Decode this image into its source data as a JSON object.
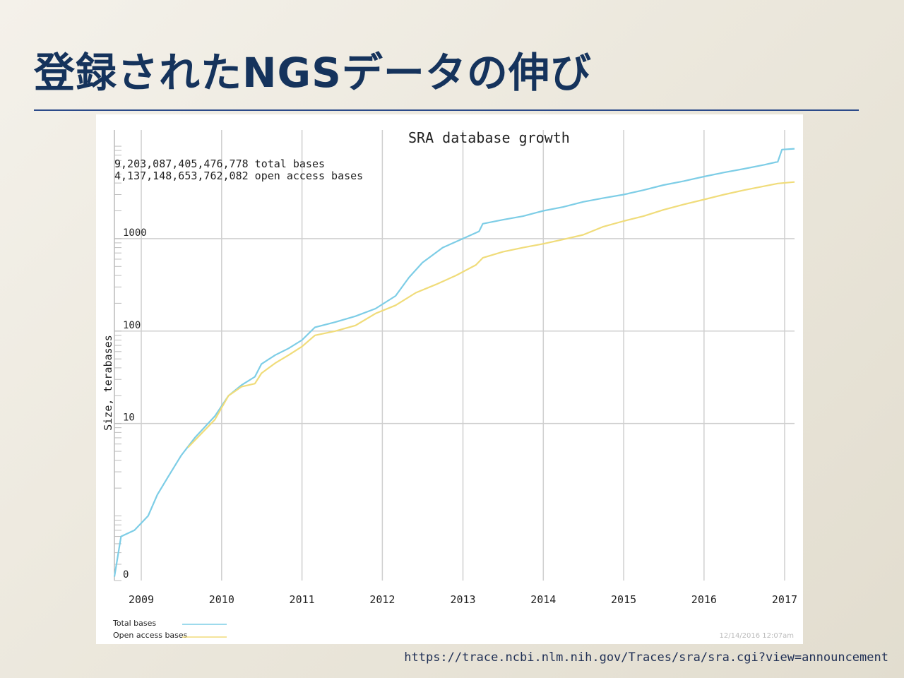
{
  "slide": {
    "title": "登録されたNGSデータの伸び",
    "source_url": "https://trace.ncbi.nlm.nih.gov/Traces/sra/sra.cgi?view=announcement"
  },
  "chart_data": {
    "type": "line",
    "title": "SRA database growth",
    "ylabel": "Size, terabases",
    "xlabel": "",
    "y_scale": "log",
    "ylim": [
      0.2,
      15000
    ],
    "xlim": [
      "2008-09-01",
      "2017-02-15"
    ],
    "x_ticks": [
      "2009",
      "2010",
      "2011",
      "2012",
      "2013",
      "2014",
      "2015",
      "2016",
      "2017"
    ],
    "y_ticks": [
      {
        "label": "0",
        "value": 0.2
      },
      {
        "label": "10",
        "value": 10
      },
      {
        "label": "100",
        "value": 100
      },
      {
        "label": "1000",
        "value": 1000
      }
    ],
    "grid": true,
    "legend_position": "bottom-left",
    "stats": [
      "9,203,087,405,476,778 total bases",
      "4,137,148,653,762,082 open access bases"
    ],
    "timestamp": "12/14/2016 12:07am",
    "series": [
      {
        "name": "Total bases",
        "color": "#7dcde6",
        "points": [
          [
            "2008-09-01",
            0.22
          ],
          [
            "2008-10-01",
            0.6
          ],
          [
            "2008-12-01",
            0.7
          ],
          [
            "2009-02-01",
            1.0
          ],
          [
            "2009-03-15",
            1.7
          ],
          [
            "2009-05-01",
            2.6
          ],
          [
            "2009-07-01",
            4.5
          ],
          [
            "2009-09-01",
            7.0
          ],
          [
            "2009-12-01",
            12
          ],
          [
            "2010-02-01",
            20
          ],
          [
            "2010-04-01",
            26
          ],
          [
            "2010-06-01",
            32
          ],
          [
            "2010-07-01",
            44
          ],
          [
            "2010-09-01",
            55
          ],
          [
            "2010-11-01",
            65
          ],
          [
            "2011-01-01",
            80
          ],
          [
            "2011-03-01",
            110
          ],
          [
            "2011-06-01",
            125
          ],
          [
            "2011-09-01",
            145
          ],
          [
            "2011-12-01",
            175
          ],
          [
            "2012-03-01",
            240
          ],
          [
            "2012-05-01",
            380
          ],
          [
            "2012-07-01",
            550
          ],
          [
            "2012-10-01",
            800
          ],
          [
            "2013-01-01",
            1000
          ],
          [
            "2013-03-15",
            1200
          ],
          [
            "2013-04-01",
            1450
          ],
          [
            "2013-07-01",
            1600
          ],
          [
            "2013-10-01",
            1750
          ],
          [
            "2014-01-01",
            2000
          ],
          [
            "2014-04-01",
            2200
          ],
          [
            "2014-07-01",
            2500
          ],
          [
            "2014-10-01",
            2750
          ],
          [
            "2015-01-01",
            3000
          ],
          [
            "2015-04-01",
            3350
          ],
          [
            "2015-07-01",
            3800
          ],
          [
            "2015-10-01",
            4200
          ],
          [
            "2016-01-01",
            4700
          ],
          [
            "2016-04-01",
            5200
          ],
          [
            "2016-07-01",
            5700
          ],
          [
            "2016-10-01",
            6300
          ],
          [
            "2016-12-01",
            6800
          ],
          [
            "2016-12-20",
            9200
          ],
          [
            "2017-02-15",
            9400
          ]
        ]
      },
      {
        "name": "Open access bases",
        "color": "#f0dc7a",
        "points": [
          [
            "2009-08-01",
            5.5
          ],
          [
            "2009-12-01",
            11
          ],
          [
            "2010-02-01",
            20
          ],
          [
            "2010-04-01",
            25
          ],
          [
            "2010-06-01",
            27
          ],
          [
            "2010-07-01",
            35
          ],
          [
            "2010-09-01",
            45
          ],
          [
            "2010-11-01",
            55
          ],
          [
            "2011-01-01",
            68
          ],
          [
            "2011-03-01",
            90
          ],
          [
            "2011-06-01",
            100
          ],
          [
            "2011-09-01",
            115
          ],
          [
            "2011-12-01",
            155
          ],
          [
            "2012-03-01",
            190
          ],
          [
            "2012-06-01",
            260
          ],
          [
            "2012-09-01",
            320
          ],
          [
            "2012-12-01",
            400
          ],
          [
            "2013-03-01",
            520
          ],
          [
            "2013-04-01",
            620
          ],
          [
            "2013-07-01",
            720
          ],
          [
            "2013-10-01",
            800
          ],
          [
            "2014-01-01",
            880
          ],
          [
            "2014-04-01",
            980
          ],
          [
            "2014-07-01",
            1100
          ],
          [
            "2014-10-01",
            1350
          ],
          [
            "2015-01-01",
            1550
          ],
          [
            "2015-04-01",
            1750
          ],
          [
            "2015-07-01",
            2050
          ],
          [
            "2015-10-01",
            2350
          ],
          [
            "2016-01-01",
            2650
          ],
          [
            "2016-04-01",
            3000
          ],
          [
            "2016-07-01",
            3350
          ],
          [
            "2016-10-01",
            3700
          ],
          [
            "2016-12-01",
            3950
          ],
          [
            "2017-02-15",
            4100
          ]
        ]
      }
    ]
  }
}
